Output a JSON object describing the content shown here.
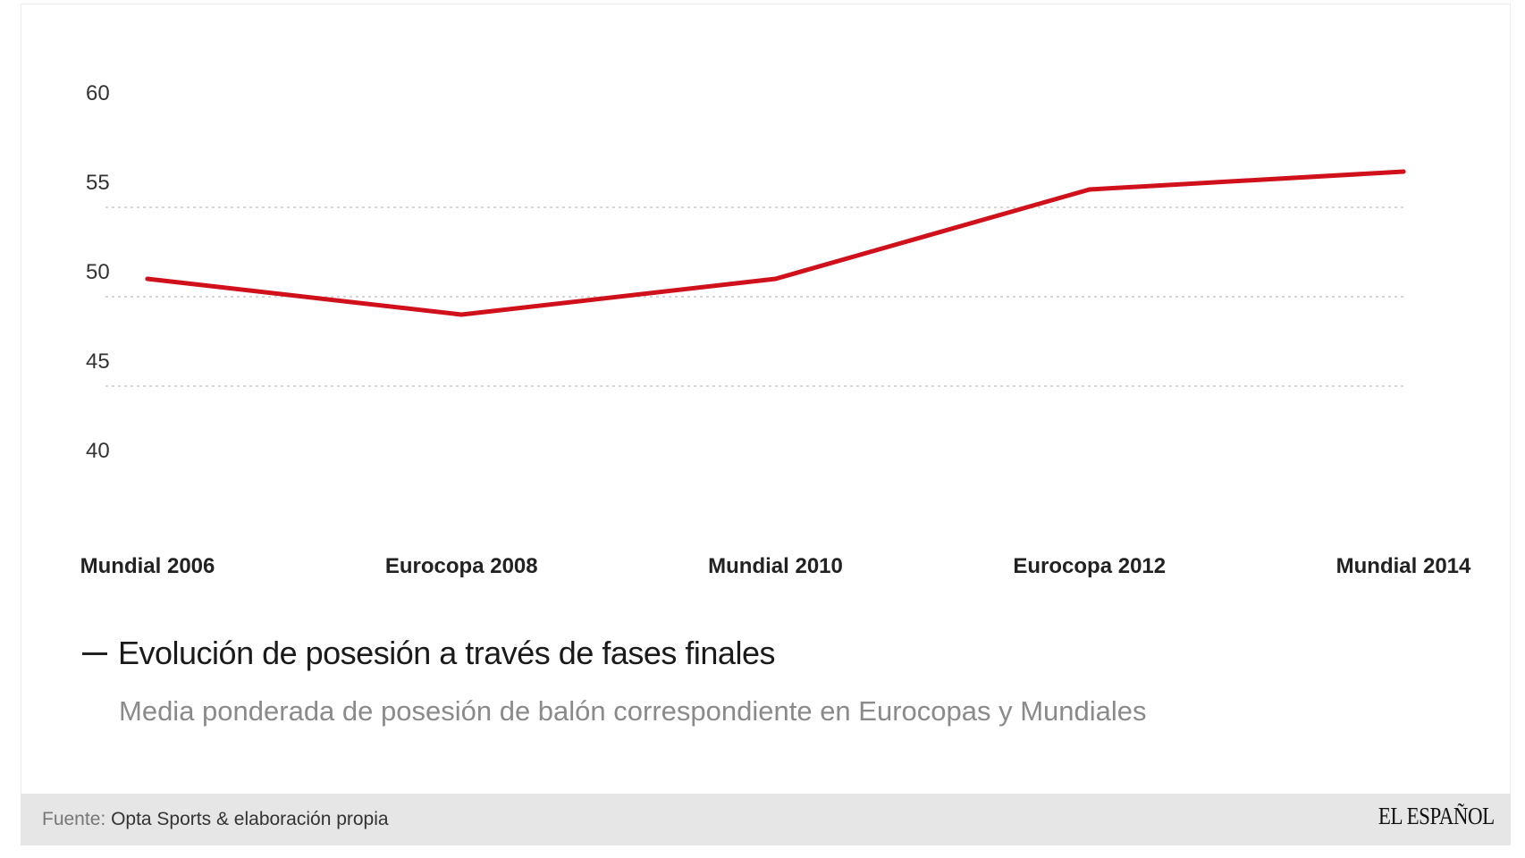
{
  "chart_data": {
    "type": "line",
    "title": "Evolución de posesión a través de fases finales",
    "subtitle": "Media ponderada de posesión de balón correspondiente en Eurocopas y Mundiales",
    "categories": [
      "Mundial 2006",
      "Eurocopa 2008",
      "Mundial 2010",
      "Eurocopa 2012",
      "Mundial 2014"
    ],
    "series": [
      {
        "name": "Evolución de posesión a través de fases finales",
        "values": [
          51.0,
          49.0,
          51.0,
          56.0,
          57.0
        ],
        "color": "#d0101a"
      }
    ],
    "y_ticks": [
      60,
      55,
      50,
      45,
      40
    ],
    "gridlines": [
      55,
      50,
      45
    ],
    "ylim": [
      38,
      62.3
    ],
    "xlabel": "",
    "ylabel": "",
    "legend_position": "bottom-left"
  },
  "legend": {
    "swatch": "—",
    "label": "Evolución de posesión a través de fases finales"
  },
  "footer": {
    "source_label": "Fuente:",
    "source_value": "Opta Sports & elaboración propia",
    "logo": "EL ESPAÑOL"
  },
  "colors": {
    "line": "#d0101a",
    "grid": "#c8c8c8",
    "footer_bg": "#e6e6e6"
  }
}
